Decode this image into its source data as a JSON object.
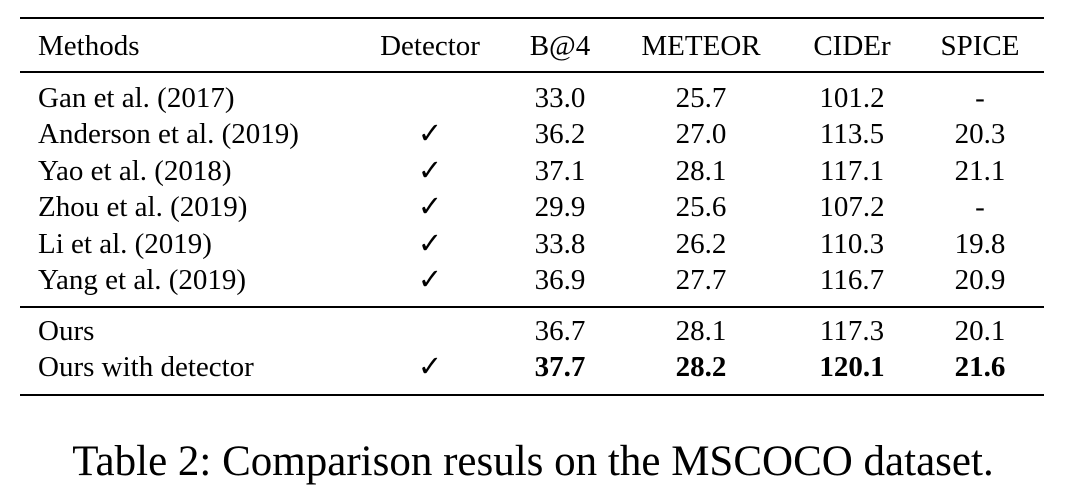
{
  "table": {
    "header": [
      "Methods",
      "Detector",
      "B@4",
      "METEOR",
      "CIDEr",
      "SPICE"
    ],
    "sections": [
      [
        {
          "method": "Gan et al. (2017)",
          "scores": [
            "33.0",
            "25.7",
            "101.2",
            "-"
          ]
        },
        {
          "method": "Anderson et al. (2019)",
          "detector": "✓",
          "scores": [
            "36.2",
            "27.0",
            "113.5",
            "20.3"
          ]
        },
        {
          "method": "Yao et al. (2018)",
          "detector": "✓",
          "scores": [
            "37.1",
            "28.1",
            "117.1",
            "21.1"
          ]
        },
        {
          "method": "Zhou et al. (2019)",
          "detector": "✓",
          "scores": [
            "29.9",
            "25.6",
            "107.2",
            "-"
          ]
        },
        {
          "method": "Li et al. (2019)",
          "detector": "✓",
          "scores": [
            "33.8",
            "26.2",
            "110.3",
            "19.8"
          ]
        },
        {
          "method": "Yang et al. (2019)",
          "detector": "✓",
          "scores": [
            "36.9",
            "27.7",
            "116.7",
            "20.9"
          ]
        }
      ],
      [
        {
          "method": "Ours",
          "scores": [
            "36.7",
            "28.1",
            "117.3",
            "20.1"
          ]
        },
        {
          "method": "Ours with detector",
          "detector": "✓",
          "bold": true,
          "scores": [
            "37.7",
            "28.2",
            "120.1",
            "21.6"
          ]
        }
      ]
    ]
  },
  "caption": "Table 2: Comparison resuls on the MSCOCO dataset."
}
